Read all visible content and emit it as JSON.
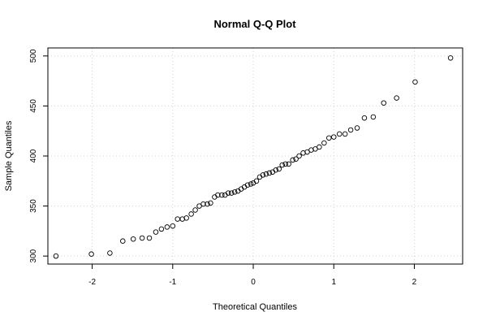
{
  "chart_data": {
    "type": "scatter",
    "title": "Normal Q-Q Plot",
    "xlabel": "Theoretical Quantiles",
    "ylabel": "Sample Quantiles",
    "xlim": [
      -2.55,
      2.6
    ],
    "ylim": [
      292,
      508
    ],
    "x_ticks": [
      -2,
      -1,
      0,
      1,
      2
    ],
    "y_ticks": [
      300,
      350,
      400,
      450,
      500
    ],
    "grid": true,
    "colors": {
      "point_stroke": "#000000",
      "grid": "#d3d3d3",
      "frame": "#000000"
    },
    "points": [
      {
        "x": -2.45,
        "y": 300
      },
      {
        "x": -2.01,
        "y": 302
      },
      {
        "x": -1.78,
        "y": 303
      },
      {
        "x": -1.62,
        "y": 315
      },
      {
        "x": -1.49,
        "y": 317
      },
      {
        "x": -1.38,
        "y": 318
      },
      {
        "x": -1.29,
        "y": 318
      },
      {
        "x": -1.21,
        "y": 324
      },
      {
        "x": -1.14,
        "y": 327
      },
      {
        "x": -1.07,
        "y": 329
      },
      {
        "x": -1.0,
        "y": 330
      },
      {
        "x": -0.94,
        "y": 337
      },
      {
        "x": -0.88,
        "y": 337
      },
      {
        "x": -0.83,
        "y": 338
      },
      {
        "x": -0.77,
        "y": 342
      },
      {
        "x": -0.72,
        "y": 346
      },
      {
        "x": -0.67,
        "y": 350
      },
      {
        "x": -0.62,
        "y": 352
      },
      {
        "x": -0.57,
        "y": 352
      },
      {
        "x": -0.53,
        "y": 353
      },
      {
        "x": -0.48,
        "y": 359
      },
      {
        "x": -0.44,
        "y": 361
      },
      {
        "x": -0.39,
        "y": 361
      },
      {
        "x": -0.35,
        "y": 361
      },
      {
        "x": -0.31,
        "y": 363
      },
      {
        "x": -0.27,
        "y": 363
      },
      {
        "x": -0.23,
        "y": 364
      },
      {
        "x": -0.19,
        "y": 365
      },
      {
        "x": -0.15,
        "y": 367
      },
      {
        "x": -0.11,
        "y": 369
      },
      {
        "x": -0.07,
        "y": 371
      },
      {
        "x": -0.03,
        "y": 372
      },
      {
        "x": 0.0,
        "y": 373
      },
      {
        "x": 0.04,
        "y": 375
      },
      {
        "x": 0.08,
        "y": 379
      },
      {
        "x": 0.12,
        "y": 381
      },
      {
        "x": 0.16,
        "y": 382
      },
      {
        "x": 0.2,
        "y": 383
      },
      {
        "x": 0.24,
        "y": 384
      },
      {
        "x": 0.28,
        "y": 386
      },
      {
        "x": 0.32,
        "y": 387
      },
      {
        "x": 0.36,
        "y": 391
      },
      {
        "x": 0.4,
        "y": 392
      },
      {
        "x": 0.44,
        "y": 392
      },
      {
        "x": 0.49,
        "y": 396
      },
      {
        "x": 0.53,
        "y": 397
      },
      {
        "x": 0.57,
        "y": 400
      },
      {
        "x": 0.62,
        "y": 403
      },
      {
        "x": 0.67,
        "y": 404
      },
      {
        "x": 0.72,
        "y": 406
      },
      {
        "x": 0.77,
        "y": 407
      },
      {
        "x": 0.82,
        "y": 409
      },
      {
        "x": 0.88,
        "y": 413
      },
      {
        "x": 0.94,
        "y": 418
      },
      {
        "x": 1.0,
        "y": 419
      },
      {
        "x": 1.07,
        "y": 422
      },
      {
        "x": 1.14,
        "y": 422
      },
      {
        "x": 1.21,
        "y": 426
      },
      {
        "x": 1.29,
        "y": 428
      },
      {
        "x": 1.38,
        "y": 438
      },
      {
        "x": 1.49,
        "y": 439
      },
      {
        "x": 1.62,
        "y": 453
      },
      {
        "x": 1.78,
        "y": 458
      },
      {
        "x": 2.01,
        "y": 474
      },
      {
        "x": 2.45,
        "y": 498
      }
    ]
  }
}
